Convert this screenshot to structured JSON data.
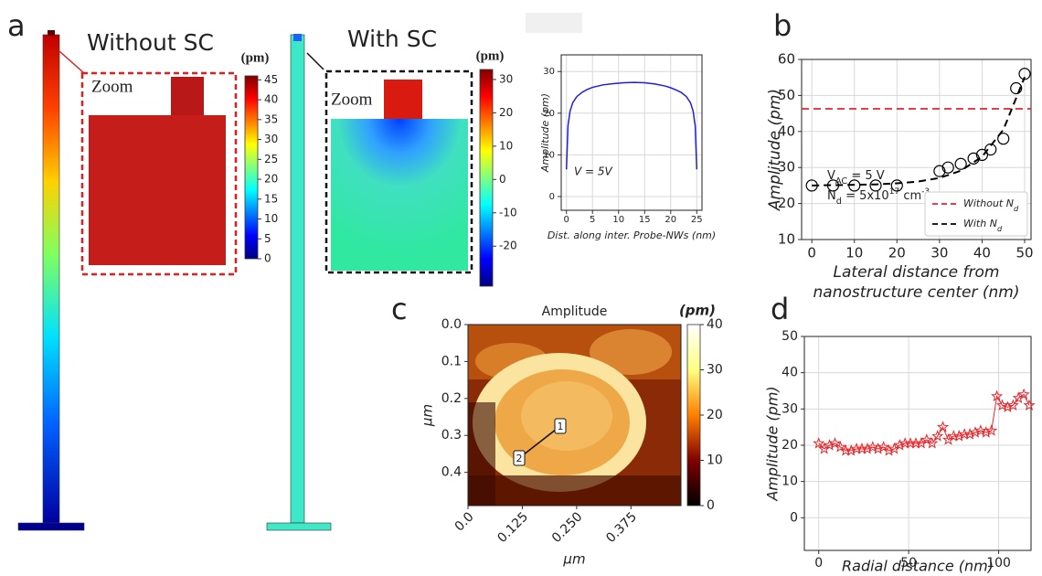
{
  "simulation": {
    "panel": "a",
    "left_title": "Without SC",
    "right_title": "With SC",
    "zoom_label": "Zoom"
  },
  "chart_data": [
    {
      "type": "colorbar",
      "colormap": "jet",
      "label": "(pm)",
      "ylim": [
        0,
        46
      ],
      "yticks": [
        0,
        5,
        10,
        15,
        20,
        25,
        30,
        35,
        40,
        45
      ]
    },
    {
      "type": "colorbar",
      "colormap": "jet",
      "label": "(pm)",
      "ylim": [
        -32,
        33
      ],
      "yticks": [
        -20,
        -10,
        0,
        10,
        20,
        30
      ]
    },
    {
      "type": "line",
      "xlabel": "Dist. along inter. Probe-NWs (nm)",
      "ylabel": "Amplitude (pm)",
      "annotation": "V  = 5V",
      "xlim": [
        -1,
        26
      ],
      "ylim": [
        -3.3,
        34
      ],
      "xticks": [
        0,
        5,
        10,
        15,
        20,
        25
      ],
      "yticks": [
        0,
        10,
        20,
        30
      ],
      "grid": true,
      "series": [
        {
          "color": "#1f1fdd",
          "x": [
            0,
            0.3,
            0.7,
            1.2,
            2,
            3,
            4,
            5,
            7,
            9,
            11,
            13,
            15,
            17,
            19,
            20,
            21,
            22,
            23,
            23.8,
            24.3,
            24.7,
            25
          ],
          "values": [
            6.5,
            17,
            20.5,
            22.5,
            24,
            25,
            25.7,
            26.2,
            26.8,
            27.1,
            27.3,
            27.4,
            27.3,
            27,
            26.5,
            26.1,
            25.6,
            25,
            24,
            22.5,
            20.5,
            17,
            6.5
          ]
        }
      ]
    },
    {
      "type": "scatter",
      "panel": "b",
      "xlabel": [
        "Lateral distance from",
        "nanostructure center  (nm)"
      ],
      "ylabel": "Amplitude (pm)",
      "xlim": [
        -2.4,
        51.5
      ],
      "ylim": [
        10,
        60
      ],
      "xticks": [
        0,
        10,
        20,
        30,
        40,
        50
      ],
      "yticks": [
        10,
        20,
        30,
        40,
        50,
        60
      ],
      "grid": true,
      "annotations": [
        [
          "V",
          {
            "sub": "AC"
          },
          " =  5 V"
        ],
        [
          "N",
          {
            "sub": "d"
          },
          " =  5x10",
          {
            "sup": "17"
          },
          " cm",
          {
            "sup": "-3"
          }
        ]
      ],
      "points": {
        "color": "#000000",
        "x": [
          0,
          5,
          10,
          15,
          20,
          30,
          32,
          35,
          38,
          40,
          42,
          45,
          48,
          50
        ],
        "values": [
          25,
          25,
          25,
          25,
          25,
          29,
          30,
          31,
          32.5,
          33.5,
          35,
          38,
          52,
          56
        ]
      },
      "reference_line": {
        "name": [
          "Without N",
          {
            "sub": "d"
          }
        ],
        "color": "#e8262b",
        "value": 46.3
      },
      "series": [
        {
          "name": [
            "With N",
            {
              "sub": "d"
            }
          ],
          "color": "#000000",
          "x": [
            0,
            5,
            10,
            15,
            20,
            25,
            30,
            35,
            40,
            45,
            50
          ],
          "values": [
            25.0,
            25.1,
            25.2,
            25.3,
            25.6,
            26.1,
            27.1,
            29.1,
            33.0,
            40.5,
            55.1
          ]
        }
      ]
    },
    {
      "type": "heatmap",
      "panel": "c",
      "title": "Amplitude",
      "xlabel": "μm",
      "ylabel": "μm",
      "colormap": "afmhot",
      "xlim": [
        0,
        0.49
      ],
      "ylim": [
        0,
        0.49
      ],
      "xticks": [
        {
          "value": 0,
          "label": "0.0"
        },
        0.125,
        {
          "value": 0.25,
          "label": "0.250"
        },
        0.375
      ],
      "yticks": [
        {
          "value": 0,
          "label": "0.0"
        },
        0.1,
        0.2,
        0.3,
        0.4
      ],
      "annotations": [
        "1",
        "2"
      ],
      "colorbar": {
        "label": "(pm)",
        "ylim": [
          0,
          40
        ],
        "yticks": [
          0,
          10,
          20,
          30,
          40
        ]
      }
    },
    {
      "type": "line",
      "panel": "d",
      "xlabel": "Radial distance (nm)",
      "ylabel": "Amplitude (pm)",
      "marker": "star",
      "xlim": [
        -8,
        118
      ],
      "ylim": [
        -9,
        50
      ],
      "xticks": [
        0,
        50,
        100
      ],
      "yticks": [
        0,
        10,
        20,
        30,
        40,
        50
      ],
      "grid": true,
      "series": [
        {
          "color": "#e8262b",
          "x": [
            0,
            3,
            6,
            9,
            12,
            15,
            18,
            21,
            24,
            27,
            30,
            33,
            36,
            39,
            42,
            45,
            48,
            51,
            54,
            57,
            60,
            63,
            66,
            69,
            72,
            75,
            78,
            81,
            84,
            87,
            90,
            93,
            96,
            99,
            102,
            105,
            108,
            111,
            114,
            117
          ],
          "values": [
            20.5,
            19,
            20,
            20.5,
            19.5,
            18.5,
            18.5,
            19,
            19,
            19,
            19.5,
            19,
            19.5,
            18.5,
            19,
            20,
            20.5,
            20.5,
            20.5,
            20.5,
            21.5,
            20.5,
            22.5,
            25,
            21.5,
            22.5,
            22.5,
            23,
            23,
            23.5,
            24,
            23.5,
            24,
            33.5,
            31,
            30.5,
            31,
            33,
            34,
            31
          ]
        }
      ]
    }
  ]
}
